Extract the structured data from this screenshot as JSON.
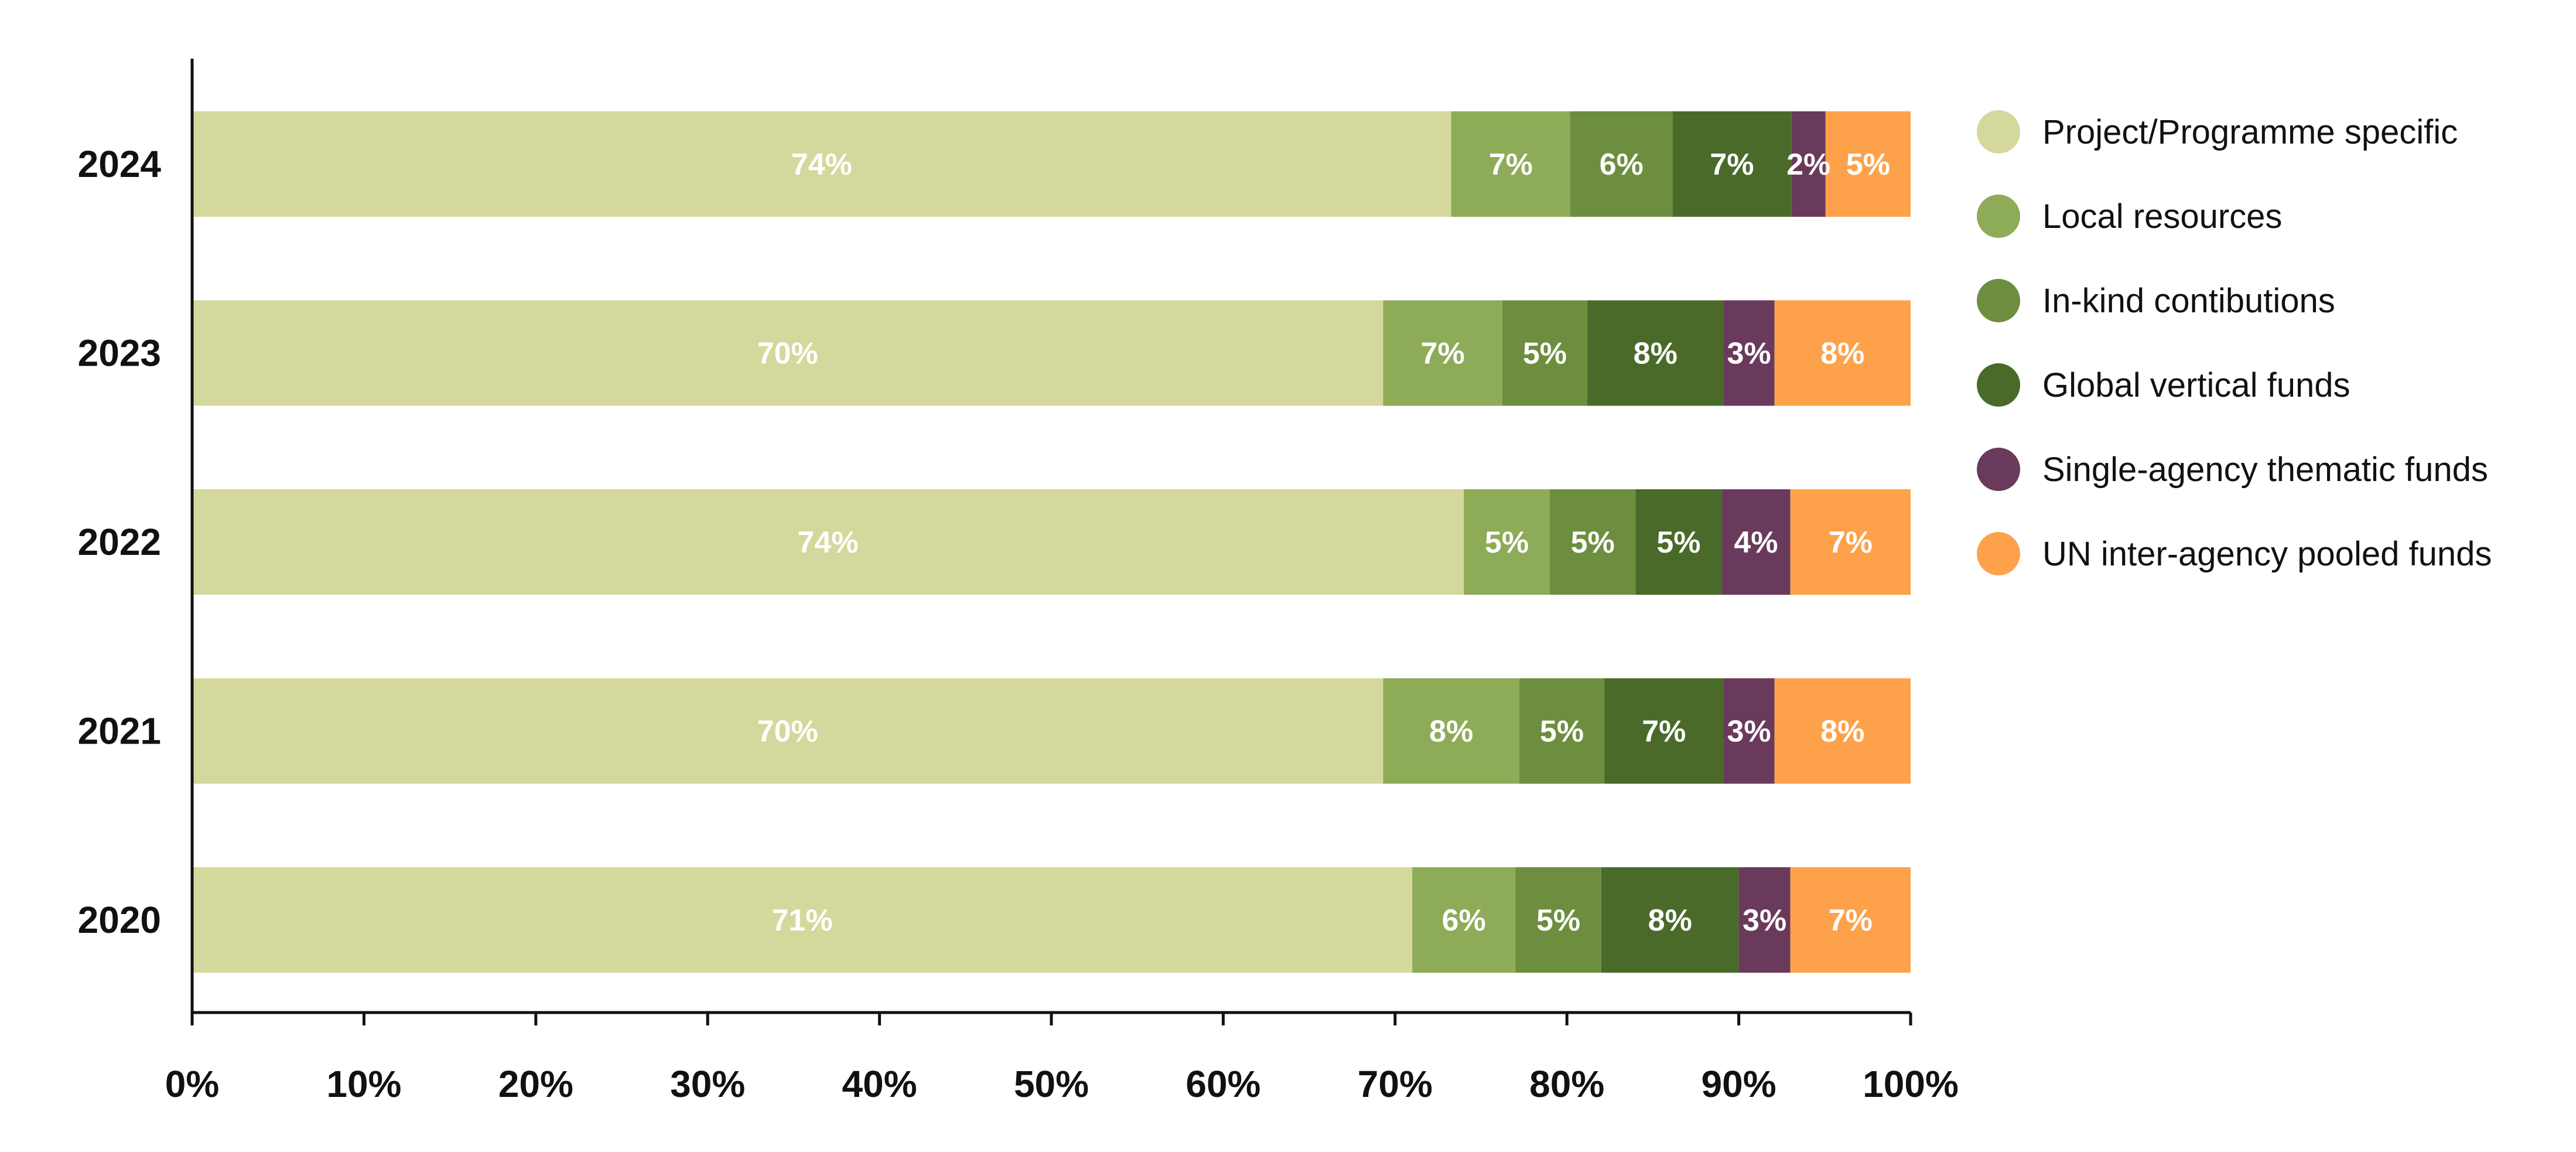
{
  "chart_data": {
    "type": "bar",
    "orientation": "horizontal",
    "stacked": true,
    "categories": [
      "2024",
      "2023",
      "2022",
      "2021",
      "2020"
    ],
    "series": [
      {
        "name": "Project/Programme specific",
        "color": "#d4d89c",
        "values": [
          74,
          70,
          74,
          70,
          71
        ],
        "labels": [
          "74%",
          "70%",
          "74%",
          "70%",
          "71%"
        ]
      },
      {
        "name": "Local resources",
        "color": "#8eab58",
        "values": [
          7,
          7,
          5,
          8,
          6
        ],
        "labels": [
          "7%",
          "7%",
          "5%",
          "8%",
          "6%"
        ]
      },
      {
        "name": "In-kind contibutions",
        "color": "#6d8e3e",
        "values": [
          6,
          5,
          5,
          5,
          5
        ],
        "labels": [
          "6%",
          "5%",
          "5%",
          "5%",
          "5%"
        ]
      },
      {
        "name": "Global vertical funds",
        "color": "#4a6a2a",
        "values": [
          7,
          8,
          5,
          7,
          8
        ],
        "labels": [
          "7%",
          "8%",
          "5%",
          "7%",
          "8%"
        ]
      },
      {
        "name": "Single-agency thematic funds",
        "color": "#693a5c",
        "values": [
          2,
          3,
          4,
          3,
          3
        ],
        "labels": [
          "2%",
          "3%",
          "4%",
          "3%",
          "3%"
        ]
      },
      {
        "name": "UN inter-agency pooled funds",
        "color": "#fda24b",
        "values": [
          5,
          8,
          7,
          8,
          7
        ],
        "labels": [
          "5%",
          "8%",
          "7%",
          "8%",
          "7%"
        ]
      }
    ],
    "xlim": [
      0,
      100
    ],
    "x_ticks": [
      "0%",
      "10%",
      "20%",
      "30%",
      "40%",
      "50%",
      "60%",
      "70%",
      "80%",
      "90%",
      "100%"
    ],
    "grid": false,
    "legend_position": "right"
  }
}
